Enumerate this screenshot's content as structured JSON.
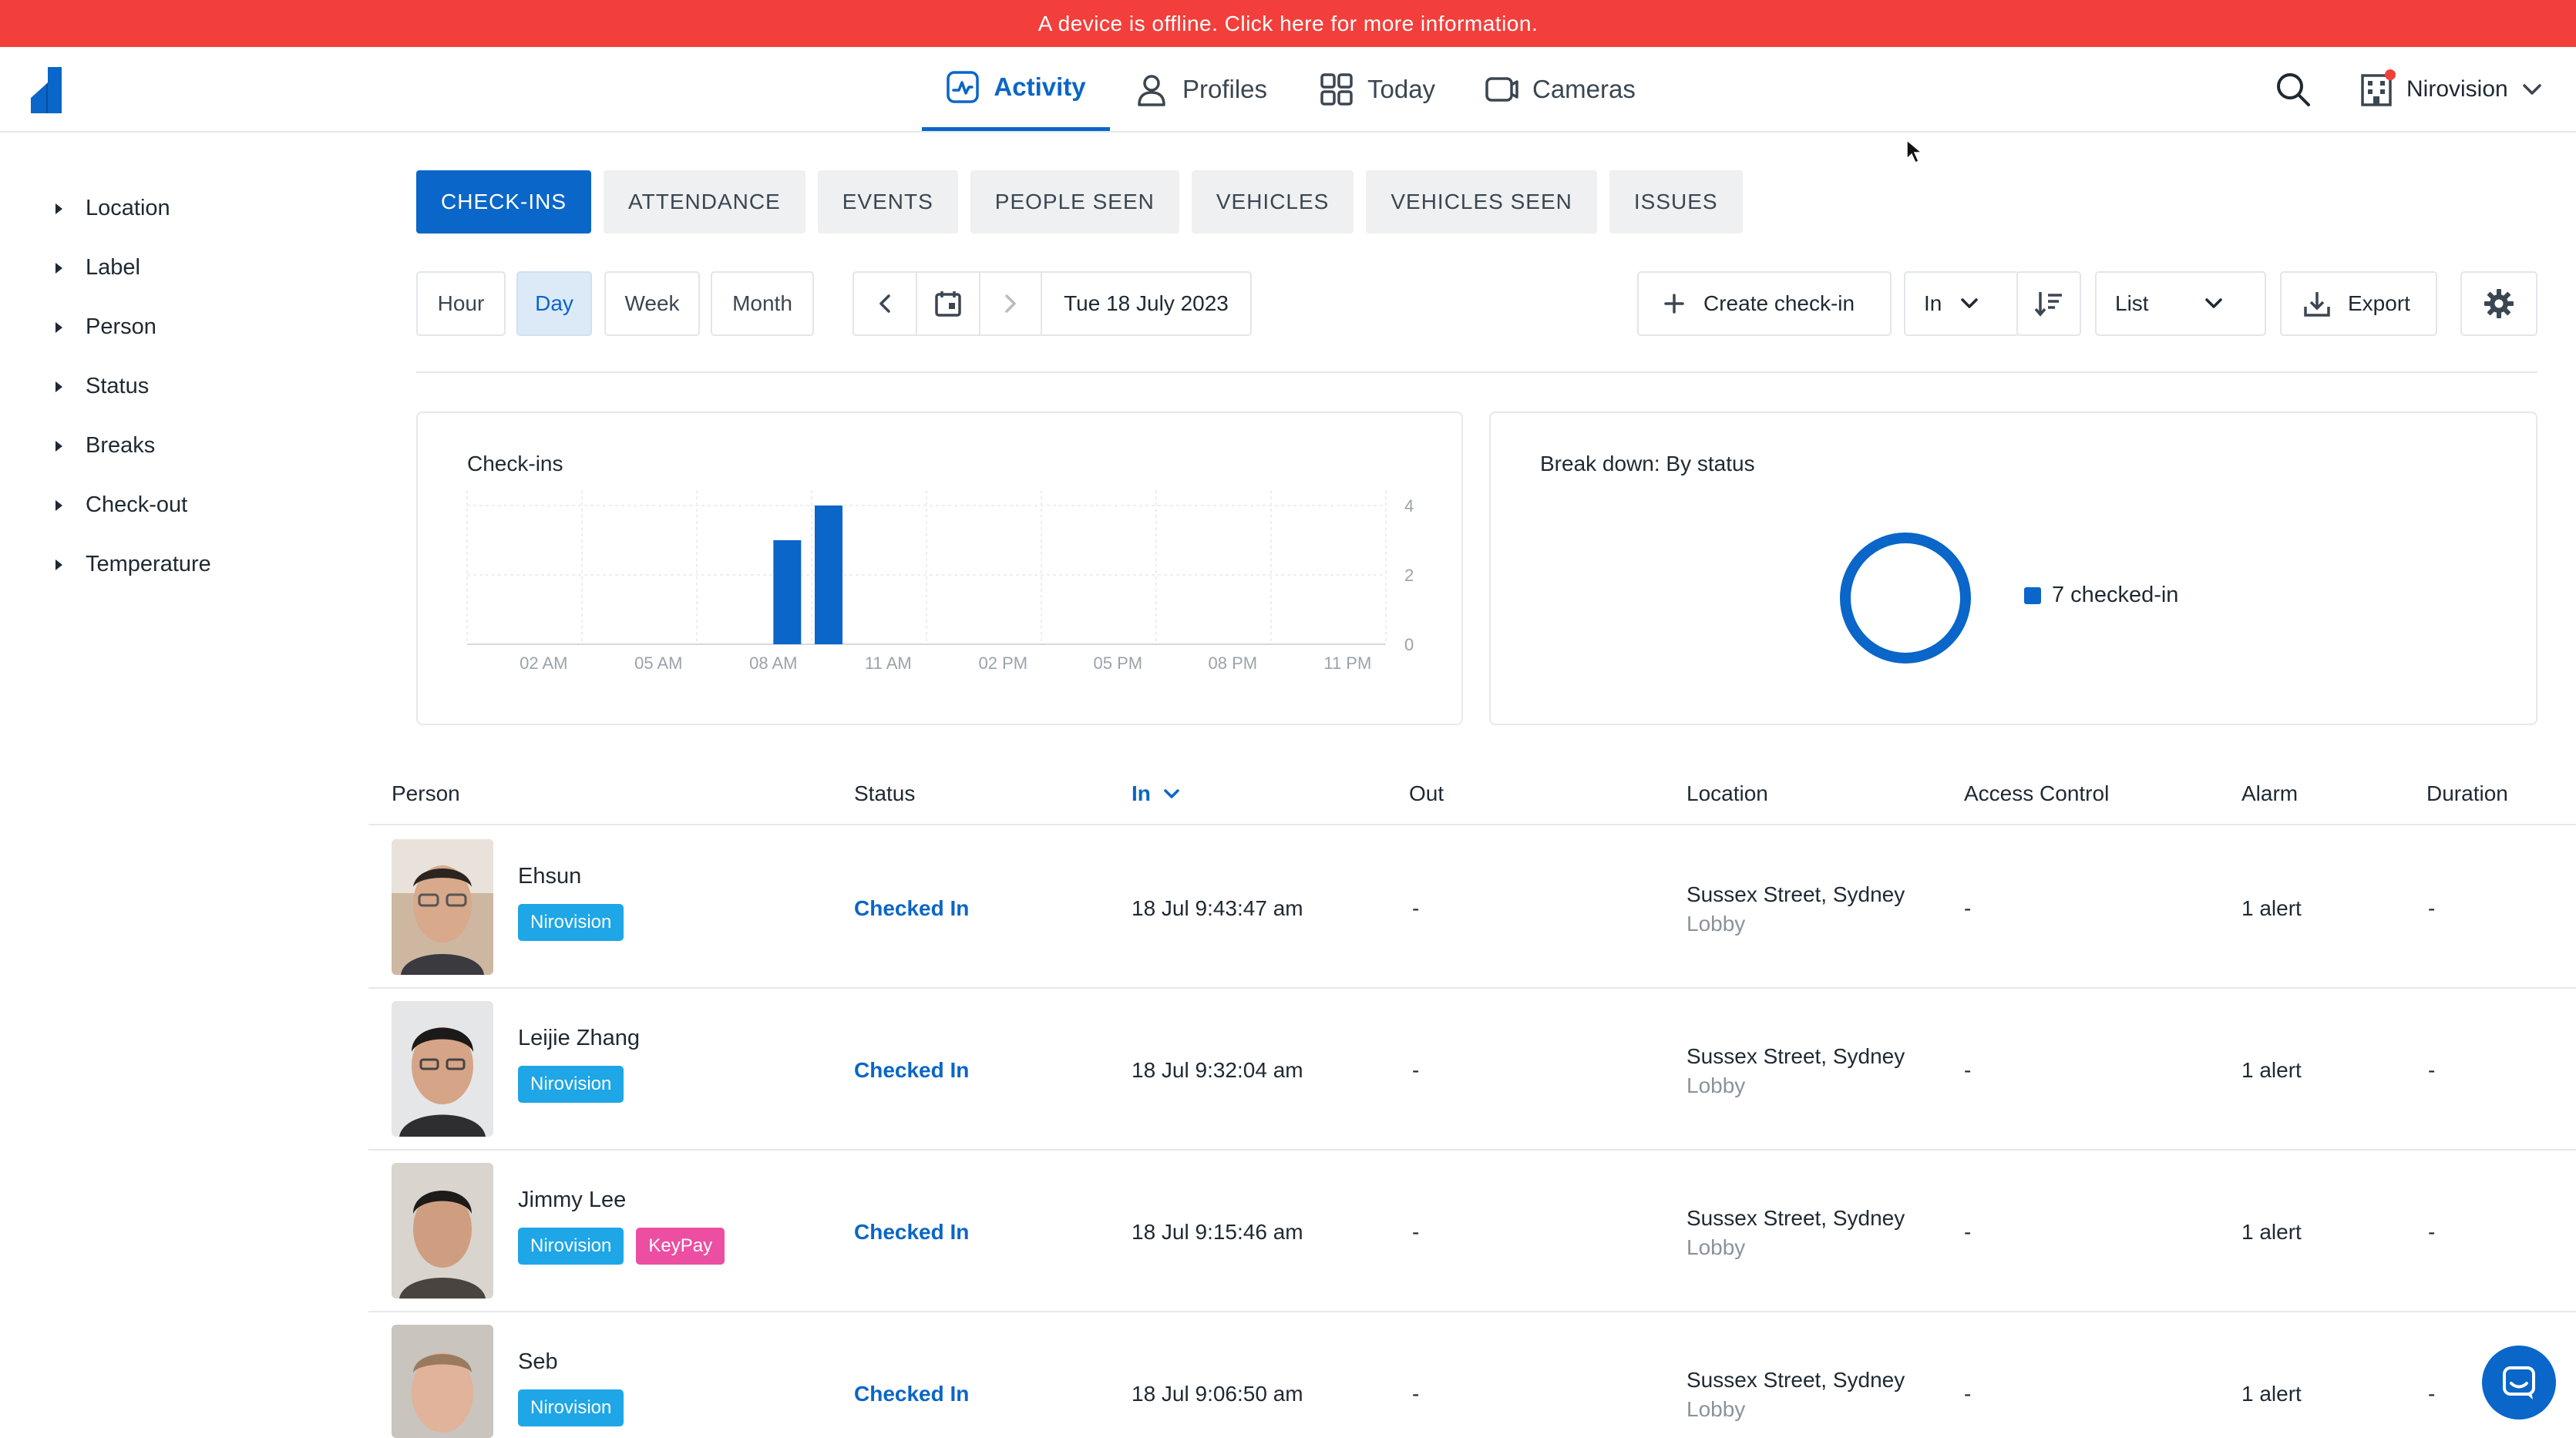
{
  "banner": {
    "text": "A device is offline. Click here for more information."
  },
  "nav": {
    "tabs": [
      {
        "label": "Activity",
        "icon": "activity-icon",
        "active": true
      },
      {
        "label": "Profiles",
        "icon": "person-icon"
      },
      {
        "label": "Today",
        "icon": "grid-icon"
      },
      {
        "label": "Cameras",
        "icon": "camera-icon"
      }
    ],
    "org_name": "Nirovision"
  },
  "filters": [
    "Location",
    "Label",
    "Person",
    "Status",
    "Breaks",
    "Check-out",
    "Temperature"
  ],
  "category_tabs": [
    "CHECK-INS",
    "ATTENDANCE",
    "EVENTS",
    "PEOPLE SEEN",
    "VEHICLES",
    "VEHICLES SEEN",
    "ISSUES"
  ],
  "active_category": "CHECK-INS",
  "toolbar": {
    "ranges": [
      "Hour",
      "Day",
      "Week",
      "Month"
    ],
    "active_range": "Day",
    "date": "Tue 18 July 2023",
    "create_label": "Create check-in",
    "direction": "In",
    "view_mode": "List",
    "export_label": "Export"
  },
  "chart_card": {
    "title": "Check-ins"
  },
  "status_card": {
    "title": "Break down: By status",
    "legend": "7 checked-in"
  },
  "chart_data": [
    {
      "type": "bar",
      "title": "Check-ins",
      "x_tick_labels": [
        "02 AM",
        "05 AM",
        "08 AM",
        "11 AM",
        "02 PM",
        "05 PM",
        "08 PM",
        "11 PM"
      ],
      "y_tick_labels": [
        "0",
        "2",
        "4"
      ],
      "ylim": [
        0,
        4
      ],
      "hours": [
        8,
        9
      ],
      "values": [
        3,
        4
      ],
      "color": "#0a66c8",
      "grid": true
    },
    {
      "type": "pie",
      "title": "Break down: By status",
      "labels": [
        "checked-in"
      ],
      "values": [
        7
      ],
      "color": "#0a66c8"
    }
  ],
  "table": {
    "columns": [
      "Person",
      "Status",
      "In",
      "Out",
      "Location",
      "Access Control",
      "Alarm",
      "Duration"
    ],
    "rows": [
      {
        "name": "Ehsun",
        "badges": [
          "Nirovision"
        ],
        "status": "Checked In",
        "in": "18 Jul 9:43:47 am",
        "out": "-",
        "location": "Sussex Street, Sydney",
        "sublocation": "Lobby",
        "access": "-",
        "alarm": "1 alert",
        "duration": "-"
      },
      {
        "name": "Leijie Zhang",
        "badges": [
          "Nirovision"
        ],
        "status": "Checked In",
        "in": "18 Jul 9:32:04 am",
        "out": "-",
        "location": "Sussex Street, Sydney",
        "sublocation": "Lobby",
        "access": "-",
        "alarm": "1 alert",
        "duration": "-"
      },
      {
        "name": "Jimmy Lee",
        "badges": [
          "Nirovision",
          "KeyPay"
        ],
        "status": "Checked In",
        "in": "18 Jul 9:15:46 am",
        "out": "-",
        "location": "Sussex Street, Sydney",
        "sublocation": "Lobby",
        "access": "-",
        "alarm": "1 alert",
        "duration": "-"
      },
      {
        "name": "Seb",
        "badges": [
          "Nirovision"
        ],
        "status": "Checked In",
        "in": "18 Jul 9:06:50 am",
        "out": "-",
        "location": "Sussex Street, Sydney",
        "sublocation": "Lobby",
        "access": "-",
        "alarm": "1 alert",
        "duration": "-"
      }
    ]
  },
  "colors": {
    "accent": "#0a66c8",
    "alert": "#f23f3c",
    "badge_blue": "#1ea6e6",
    "badge_pink": "#ec4ea2"
  }
}
